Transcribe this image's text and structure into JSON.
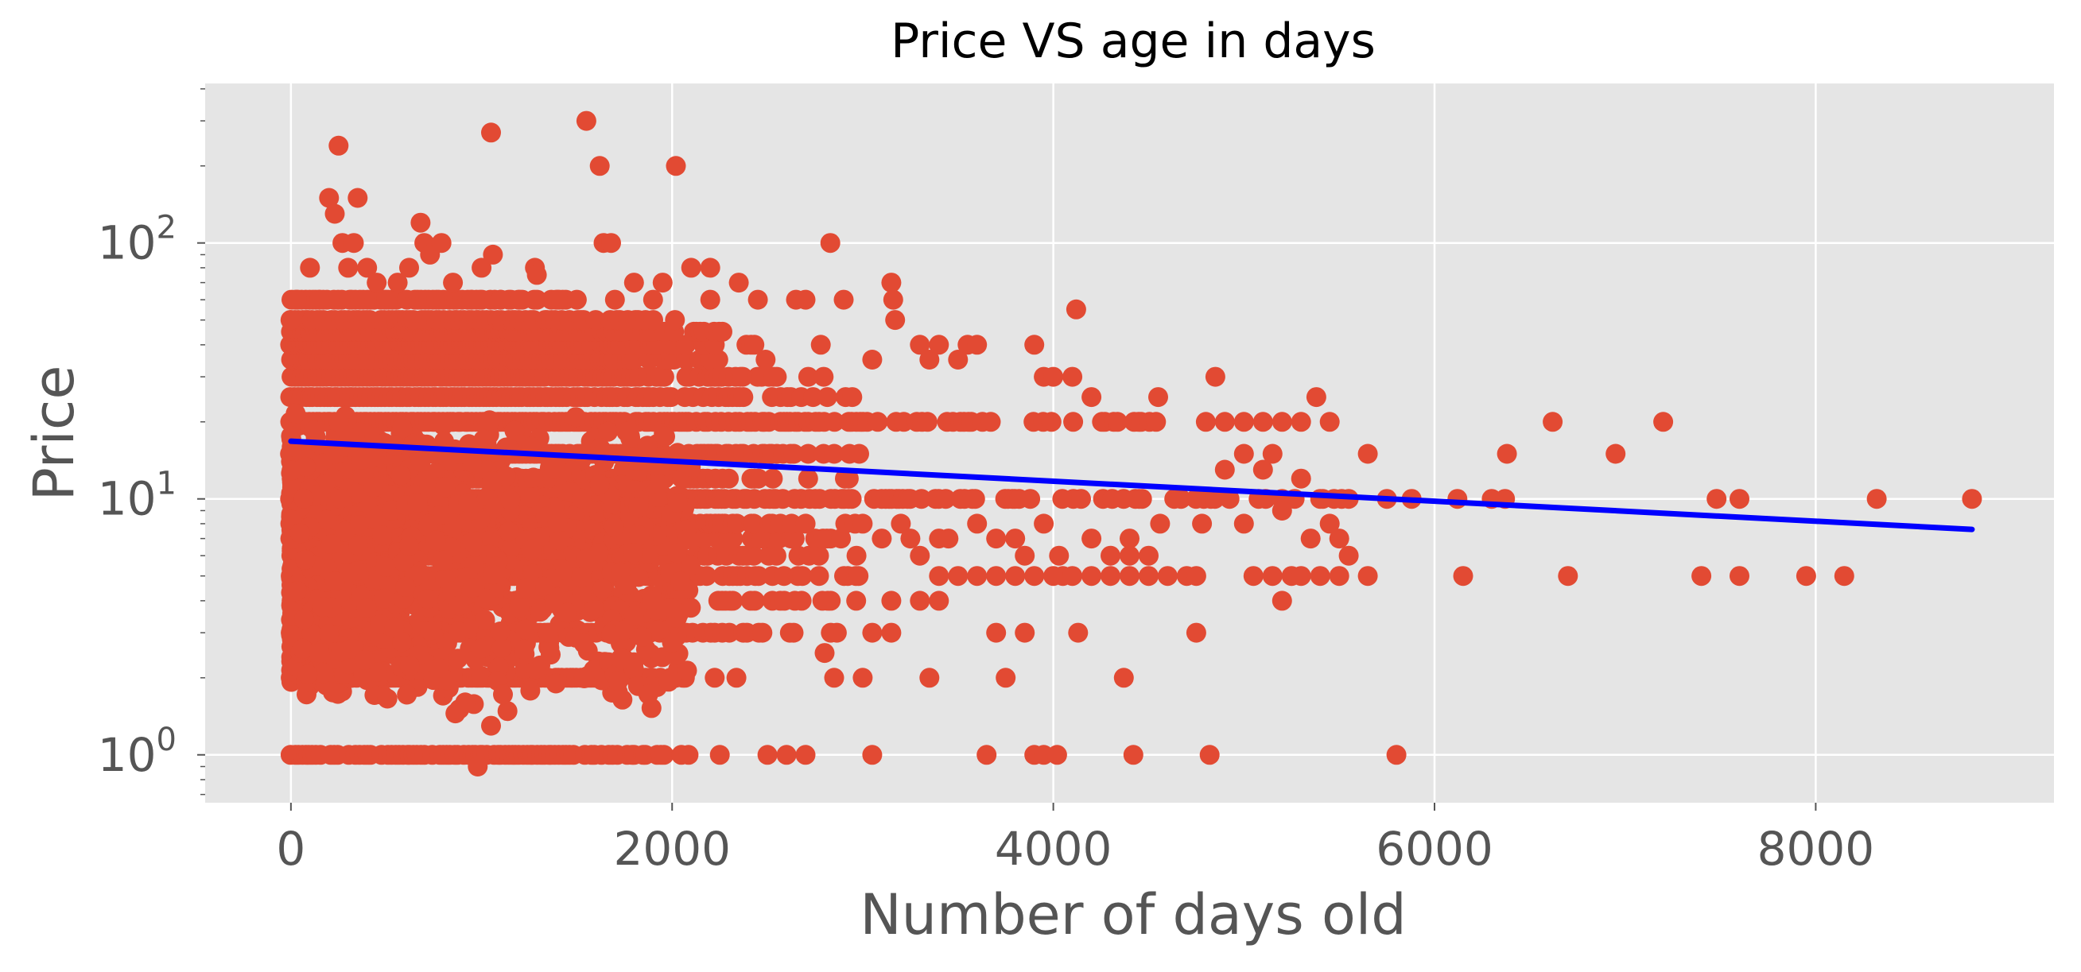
{
  "chart_data": {
    "type": "scatter",
    "title": "Price VS age in days",
    "xlabel": "Number of days old",
    "ylabel": "Price",
    "xlim": [
      -450,
      9250
    ],
    "ylim": [
      0.65,
      420
    ],
    "yscale": "log",
    "grid": true,
    "legend": "none",
    "x_ticks": [
      0,
      2000,
      4000,
      6000,
      8000
    ],
    "x_tick_labels": [
      "0",
      "2000",
      "4000",
      "6000",
      "8000"
    ],
    "y_ticks": [
      1,
      10,
      100
    ],
    "y_tick_labels": [
      {
        "base": "10",
        "exp": "0"
      },
      {
        "base": "10",
        "exp": "1"
      },
      {
        "base": "10",
        "exp": "2"
      }
    ],
    "colors": {
      "background": "#e5e5e5",
      "grid": "#ffffff",
      "points": "#e24a33",
      "trend": "#0000ff"
    },
    "price_levels": [
      1,
      2,
      3,
      4,
      5,
      6,
      7,
      8,
      10,
      12,
      15,
      20,
      25,
      30,
      35,
      40,
      45,
      50,
      60
    ],
    "series": [
      {
        "kind": "scatter",
        "points": [
          [
            0,
            50
          ],
          [
            30,
            60
          ],
          [
            100,
            80
          ],
          [
            150,
            60
          ],
          [
            200,
            150
          ],
          [
            230,
            130
          ],
          [
            250,
            240
          ],
          [
            270,
            100
          ],
          [
            300,
            80
          ],
          [
            330,
            100
          ],
          [
            350,
            150
          ],
          [
            400,
            80
          ],
          [
            450,
            70
          ],
          [
            500,
            60
          ],
          [
            560,
            70
          ],
          [
            620,
            80
          ],
          [
            680,
            120
          ],
          [
            700,
            100
          ],
          [
            730,
            90
          ],
          [
            790,
            100
          ],
          [
            850,
            70
          ],
          [
            950,
            60
          ],
          [
            1000,
            80
          ],
          [
            1050,
            270
          ],
          [
            1060,
            90
          ],
          [
            1100,
            60
          ],
          [
            1200,
            60
          ],
          [
            1280,
            80
          ],
          [
            1290,
            75
          ],
          [
            1400,
            60
          ],
          [
            1500,
            60
          ],
          [
            1550,
            300
          ],
          [
            1620,
            200
          ],
          [
            1640,
            100
          ],
          [
            1680,
            100
          ],
          [
            1700,
            60
          ],
          [
            1800,
            70
          ],
          [
            1900,
            60
          ],
          [
            1950,
            70
          ],
          [
            2020,
            200
          ],
          [
            2100,
            80
          ],
          [
            2200,
            80
          ],
          [
            2200,
            60
          ],
          [
            2350,
            70
          ],
          [
            2450,
            60
          ],
          [
            2650,
            60
          ],
          [
            2700,
            60
          ],
          [
            2780,
            40
          ],
          [
            2830,
            100
          ],
          [
            2900,
            60
          ],
          [
            3050,
            35
          ],
          [
            3150,
            70
          ],
          [
            3160,
            60
          ],
          [
            3170,
            50
          ],
          [
            3300,
            40
          ],
          [
            3350,
            35
          ],
          [
            3400,
            40
          ],
          [
            3500,
            35
          ],
          [
            3550,
            40
          ],
          [
            3600,
            40
          ],
          [
            3900,
            40
          ],
          [
            3950,
            30
          ],
          [
            4000,
            30
          ],
          [
            4100,
            30
          ],
          [
            4120,
            55
          ],
          [
            4200,
            25
          ],
          [
            4550,
            25
          ],
          [
            4800,
            20
          ],
          [
            4850,
            30
          ],
          [
            4900,
            20
          ],
          [
            5000,
            20
          ],
          [
            5100,
            20
          ],
          [
            5150,
            15
          ],
          [
            5200,
            20
          ],
          [
            5300,
            20
          ],
          [
            5380,
            25
          ],
          [
            5450,
            20
          ],
          [
            5650,
            15
          ],
          [
            6620,
            20
          ],
          [
            6950,
            15
          ],
          [
            7200,
            20
          ],
          [
            6380,
            15
          ],
          [
            4900,
            13
          ],
          [
            5000,
            15
          ],
          [
            5100,
            13
          ],
          [
            5200,
            10
          ],
          [
            5300,
            12
          ],
          [
            5400,
            10
          ],
          [
            5550,
            10
          ],
          [
            5750,
            10
          ],
          [
            5880,
            10
          ],
          [
            6120,
            10
          ],
          [
            6300,
            10
          ],
          [
            6370,
            10
          ],
          [
            7480,
            10
          ],
          [
            7600,
            10
          ],
          [
            8320,
            10
          ],
          [
            8820,
            10
          ],
          [
            4780,
            8
          ],
          [
            5000,
            8
          ],
          [
            5200,
            9
          ],
          [
            5350,
            7
          ],
          [
            5450,
            8
          ],
          [
            5500,
            7
          ],
          [
            5550,
            6
          ],
          [
            4560,
            8
          ],
          [
            4400,
            7
          ],
          [
            3600,
            8
          ],
          [
            3700,
            7
          ],
          [
            3800,
            7
          ],
          [
            3850,
            6
          ],
          [
            3950,
            8
          ],
          [
            4030,
            6
          ],
          [
            4050,
            5
          ],
          [
            4200,
            7
          ],
          [
            4300,
            6
          ],
          [
            4400,
            6
          ],
          [
            4500,
            6
          ],
          [
            3000,
            8
          ],
          [
            3100,
            7
          ],
          [
            3200,
            8
          ],
          [
            3250,
            7
          ],
          [
            3300,
            6
          ],
          [
            3400,
            7
          ],
          [
            3450,
            7
          ],
          [
            3400,
            5
          ],
          [
            3500,
            5
          ],
          [
            3600,
            5
          ],
          [
            3700,
            5
          ],
          [
            3800,
            5
          ],
          [
            3900,
            5
          ],
          [
            4000,
            5
          ],
          [
            4100,
            5
          ],
          [
            4200,
            5
          ],
          [
            4300,
            5
          ],
          [
            4400,
            5
          ],
          [
            4500,
            5
          ],
          [
            4600,
            5
          ],
          [
            4700,
            5
          ],
          [
            4750,
            5
          ],
          [
            5050,
            5
          ],
          [
            5150,
            5
          ],
          [
            5250,
            5
          ],
          [
            5300,
            5
          ],
          [
            5400,
            5
          ],
          [
            5500,
            5
          ],
          [
            5650,
            5
          ],
          [
            6150,
            5
          ],
          [
            6700,
            5
          ],
          [
            7400,
            5
          ],
          [
            7600,
            5
          ],
          [
            7950,
            5
          ],
          [
            8150,
            5
          ],
          [
            3150,
            4
          ],
          [
            3300,
            4
          ],
          [
            3400,
            4
          ],
          [
            5200,
            4
          ],
          [
            3050,
            3
          ],
          [
            3150,
            3
          ],
          [
            3700,
            3
          ],
          [
            3850,
            3
          ],
          [
            4130,
            3
          ],
          [
            4750,
            3
          ],
          [
            2800,
            2.5
          ],
          [
            2850,
            2
          ],
          [
            3000,
            2
          ],
          [
            3350,
            2
          ],
          [
            3750,
            2
          ],
          [
            4370,
            2
          ],
          [
            3050,
            1
          ],
          [
            3650,
            1
          ],
          [
            3900,
            1
          ],
          [
            3950,
            1
          ],
          [
            4020,
            1
          ],
          [
            4420,
            1
          ],
          [
            4820,
            1
          ],
          [
            5800,
            1
          ],
          [
            980,
            0.9
          ],
          [
            1050,
            1.3
          ],
          [
            1800,
            3.5
          ],
          [
            2500,
            1
          ],
          [
            2600,
            1
          ],
          [
            2700,
            1
          ],
          [
            150,
            2.5
          ],
          [
            1350,
            3
          ],
          [
            2250,
            1
          ]
        ]
      },
      {
        "kind": "line",
        "name": "",
        "points": [
          [
            0,
            16.8
          ],
          [
            8820,
            7.6
          ]
        ]
      }
    ]
  }
}
